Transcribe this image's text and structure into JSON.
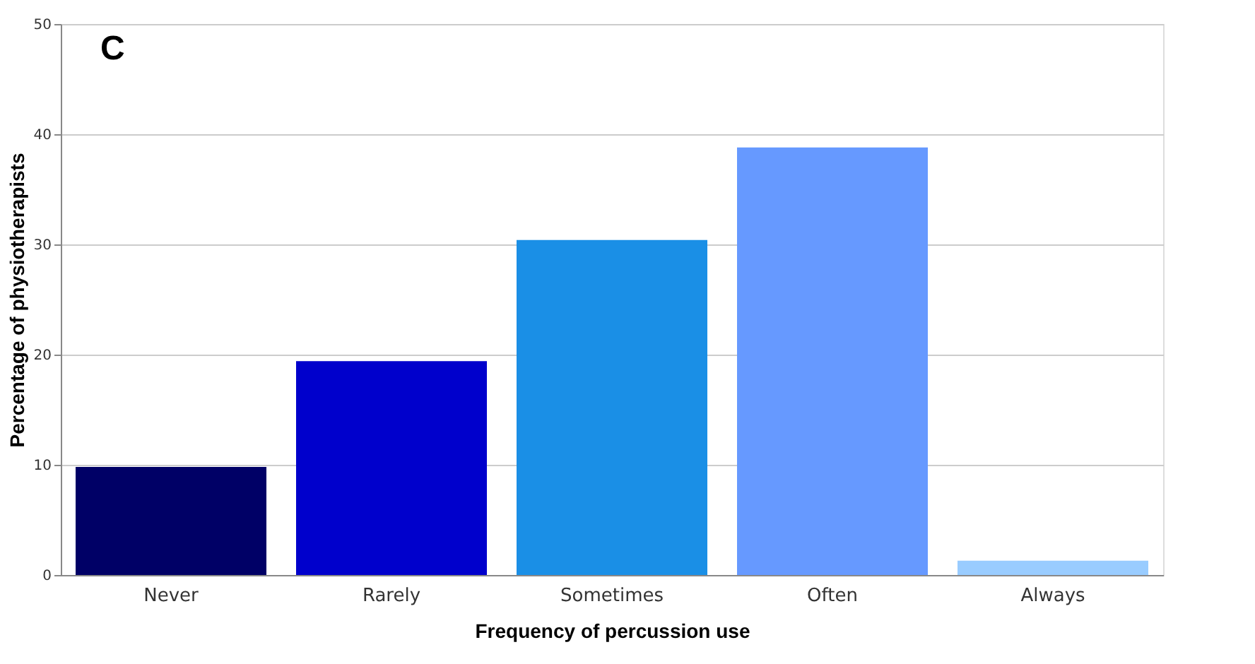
{
  "chart_data": {
    "type": "bar",
    "xlabel": "Frequency of percussion use",
    "ylabel": "Percentage of physiotherapists",
    "categories": [
      "Never",
      "Rarely",
      "Sometimes",
      "Often",
      "Always"
    ],
    "values": [
      9.8,
      19.4,
      30.4,
      38.8,
      1.3
    ],
    "colors": [
      "#000066",
      "#0000cc",
      "#1a8fe6",
      "#6699ff",
      "#99ccff"
    ],
    "ylim": [
      0,
      50
    ],
    "yticks": [
      0,
      10,
      20,
      30,
      40,
      50
    ],
    "grid": "y",
    "annotations": [
      "C"
    ]
  }
}
